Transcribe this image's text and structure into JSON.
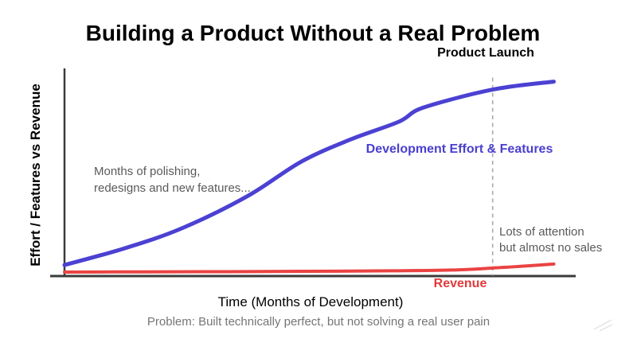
{
  "chart_data": {
    "type": "line",
    "title": "Building a Product Without a Real Problem",
    "xlabel": "Time (Months of Development)",
    "ylabel": "Effort / Features vs Revenue",
    "caption": "Problem: Built technically perfect, but not solving a real user pain",
    "x_range": [
      0,
      12
    ],
    "y_range": [
      0,
      100
    ],
    "grid": false,
    "tick_labels": "none (conceptual sketch, axes carry no numeric ticks)",
    "axis_color": "#3a3a3a",
    "series": [
      {
        "name": "Development Effort & Features",
        "color": "#4b41d2",
        "label_color": "#4a3fce",
        "stroke_width": 5,
        "x": [
          0,
          1.5,
          2.9,
          4.5,
          5.8,
          7,
          8.2,
          8.8,
          10.5,
          12
        ],
        "values": [
          5.5,
          14,
          24,
          40,
          57,
          68,
          77,
          84,
          93,
          97
        ]
      },
      {
        "name": "Revenue",
        "color": "#ea4343",
        "label_color": "#e23a3a",
        "stroke_width": 4,
        "x": [
          0,
          2,
          4,
          6,
          8,
          9.5,
          10.5,
          11.3,
          12
        ],
        "values": [
          2,
          2.1,
          2.2,
          2.4,
          2.6,
          3,
          4,
          5,
          6
        ]
      }
    ],
    "event_line": {
      "label": "Product Launch",
      "x": 10.5,
      "y_top": 99,
      "style": "dashed",
      "color": "#ababab"
    },
    "annotations": [
      {
        "id": "polishing",
        "text": "Months of polishing,\nredesigns and new features...",
        "color": "#5a5a5a"
      },
      {
        "id": "no-sales",
        "text": "Lots of attention\nbut almost no sales",
        "color": "#5a5a5a"
      }
    ],
    "legend_position": "inline-labels"
  }
}
